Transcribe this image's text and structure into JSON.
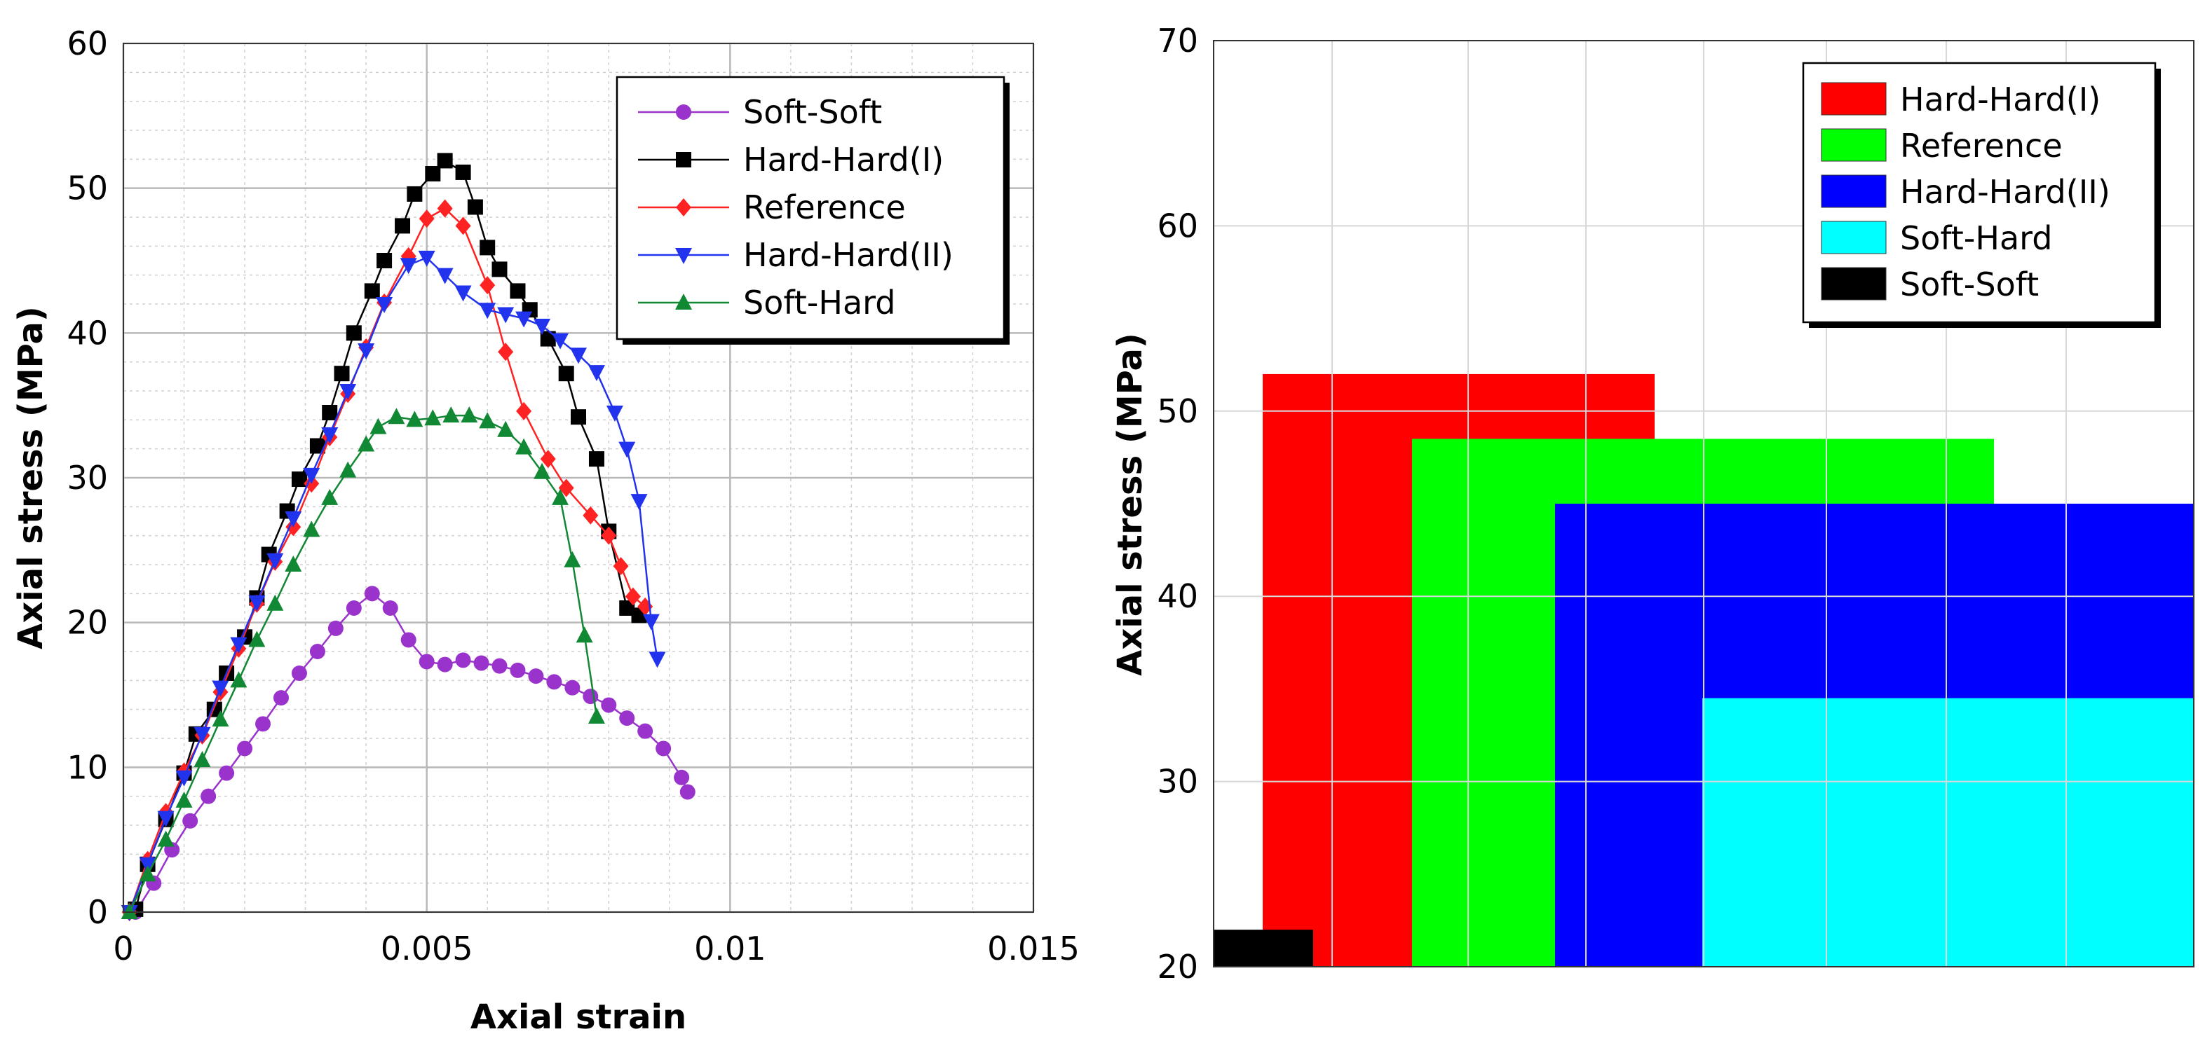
{
  "chart_data": [
    {
      "type": "line",
      "title": "",
      "xlabel": "Axial strain",
      "ylabel": "Axial stress (MPa)",
      "xlim": [
        0,
        0.015
      ],
      "ylim": [
        0,
        60
      ],
      "xticks": [
        0,
        0.005,
        0.01,
        0.015
      ],
      "xtick_labels": [
        "0",
        "0.005",
        "0.01",
        "0.015"
      ],
      "yticks": [
        0,
        10,
        20,
        30,
        40,
        50,
        60
      ],
      "ytick_labels": [
        "0",
        "10",
        "20",
        "30",
        "40",
        "50",
        "60"
      ],
      "grid": true,
      "legend": "top-right",
      "series": [
        {
          "name": "Soft-Soft",
          "color": "#9933cc",
          "marker": "circle",
          "points": [
            [
              0.0002,
              0
            ],
            [
              0.0005,
              2
            ],
            [
              0.0008,
              4.3
            ],
            [
              0.0011,
              6.3
            ],
            [
              0.0014,
              8
            ],
            [
              0.0017,
              9.6
            ],
            [
              0.002,
              11.3
            ],
            [
              0.0023,
              13
            ],
            [
              0.0026,
              14.8
            ],
            [
              0.0029,
              16.5
            ],
            [
              0.0032,
              18
            ],
            [
              0.0035,
              19.6
            ],
            [
              0.0038,
              21
            ],
            [
              0.0041,
              22
            ],
            [
              0.0044,
              21
            ],
            [
              0.0047,
              18.8
            ],
            [
              0.005,
              17.3
            ],
            [
              0.0053,
              17.1
            ],
            [
              0.0056,
              17.4
            ],
            [
              0.0059,
              17.2
            ],
            [
              0.0062,
              17
            ],
            [
              0.0065,
              16.7
            ],
            [
              0.0068,
              16.3
            ],
            [
              0.0071,
              15.9
            ],
            [
              0.0074,
              15.5
            ],
            [
              0.0077,
              14.9
            ],
            [
              0.008,
              14.3
            ],
            [
              0.0083,
              13.4
            ],
            [
              0.0086,
              12.5
            ],
            [
              0.0089,
              11.3
            ],
            [
              0.0092,
              9.3
            ],
            [
              0.0093,
              8.3
            ]
          ]
        },
        {
          "name": "Hard-Hard(I)",
          "color": "#000000",
          "marker": "square",
          "points": [
            [
              0.0002,
              0.2
            ],
            [
              0.0004,
              3.3
            ],
            [
              0.0007,
              6.4
            ],
            [
              0.001,
              9.6
            ],
            [
              0.0012,
              12.3
            ],
            [
              0.0015,
              14
            ],
            [
              0.0017,
              16.5
            ],
            [
              0.002,
              19
            ],
            [
              0.0022,
              21.7
            ],
            [
              0.0024,
              24.7
            ],
            [
              0.0027,
              27.7
            ],
            [
              0.0029,
              29.9
            ],
            [
              0.0032,
              32.2
            ],
            [
              0.0034,
              34.5
            ],
            [
              0.0036,
              37.2
            ],
            [
              0.0038,
              40
            ],
            [
              0.0041,
              42.9
            ],
            [
              0.0043,
              45
            ],
            [
              0.0046,
              47.4
            ],
            [
              0.0048,
              49.6
            ],
            [
              0.0051,
              51
            ],
            [
              0.0053,
              51.9
            ],
            [
              0.0056,
              51.1
            ],
            [
              0.0058,
              48.7
            ],
            [
              0.006,
              45.9
            ],
            [
              0.0062,
              44.4
            ],
            [
              0.0065,
              42.9
            ],
            [
              0.0067,
              41.6
            ],
            [
              0.007,
              39.6
            ],
            [
              0.0073,
              37.2
            ],
            [
              0.0075,
              34.2
            ],
            [
              0.0078,
              31.3
            ],
            [
              0.008,
              26.3
            ],
            [
              0.0083,
              21
            ],
            [
              0.0085,
              20.5
            ]
          ]
        },
        {
          "name": "Reference",
          "color": "#ff2222",
          "marker": "diamond",
          "points": [
            [
              0.0001,
              0
            ],
            [
              0.0004,
              3.6
            ],
            [
              0.0007,
              6.9
            ],
            [
              0.001,
              9.7
            ],
            [
              0.0013,
              12.2
            ],
            [
              0.0016,
              15.2
            ],
            [
              0.0019,
              18.2
            ],
            [
              0.0022,
              21.3
            ],
            [
              0.0025,
              24.2
            ],
            [
              0.0028,
              26.6
            ],
            [
              0.0031,
              29.6
            ],
            [
              0.0034,
              32.8
            ],
            [
              0.0037,
              35.8
            ],
            [
              0.004,
              39
            ],
            [
              0.0043,
              42.1
            ],
            [
              0.0047,
              45.3
            ],
            [
              0.005,
              47.9
            ],
            [
              0.0053,
              48.6
            ],
            [
              0.0056,
              47.4
            ],
            [
              0.006,
              43.3
            ],
            [
              0.0063,
              38.7
            ],
            [
              0.0066,
              34.6
            ],
            [
              0.007,
              31.3
            ],
            [
              0.0073,
              29.3
            ],
            [
              0.0077,
              27.4
            ],
            [
              0.008,
              26
            ],
            [
              0.0082,
              23.9
            ],
            [
              0.0084,
              21.8
            ],
            [
              0.0086,
              21.1
            ]
          ]
        },
        {
          "name": "Hard-Hard(II)",
          "color": "#2233ee",
          "marker": "triangle-down",
          "points": [
            [
              0.0001,
              0
            ],
            [
              0.0004,
              3.3
            ],
            [
              0.0007,
              6.5
            ],
            [
              0.001,
              9.3
            ],
            [
              0.0013,
              12.3
            ],
            [
              0.0016,
              15.5
            ],
            [
              0.0019,
              18.5
            ],
            [
              0.0022,
              21.4
            ],
            [
              0.0025,
              24.3
            ],
            [
              0.0028,
              27.2
            ],
            [
              0.0031,
              30.2
            ],
            [
              0.0034,
              33
            ],
            [
              0.0037,
              36
            ],
            [
              0.004,
              38.8
            ],
            [
              0.0043,
              42
            ],
            [
              0.0047,
              44.7
            ],
            [
              0.005,
              45.2
            ],
            [
              0.0053,
              44
            ],
            [
              0.0056,
              42.8
            ],
            [
              0.006,
              41.6
            ],
            [
              0.0063,
              41.3
            ],
            [
              0.0066,
              41
            ],
            [
              0.0069,
              40.5
            ],
            [
              0.0072,
              39.5
            ],
            [
              0.0075,
              38.5
            ],
            [
              0.0078,
              37.3
            ],
            [
              0.0081,
              34.5
            ],
            [
              0.0083,
              32
            ],
            [
              0.0085,
              28.4
            ],
            [
              0.0087,
              20.1
            ],
            [
              0.0088,
              17.5
            ]
          ]
        },
        {
          "name": "Soft-Hard",
          "color": "#118833",
          "marker": "triangle-up",
          "points": [
            [
              0.0001,
              0
            ],
            [
              0.0004,
              2.6
            ],
            [
              0.0007,
              5
            ],
            [
              0.001,
              7.7
            ],
            [
              0.0013,
              10.5
            ],
            [
              0.0016,
              13.3
            ],
            [
              0.0019,
              16
            ],
            [
              0.0022,
              18.8
            ],
            [
              0.0025,
              21.3
            ],
            [
              0.0028,
              24
            ],
            [
              0.0031,
              26.4
            ],
            [
              0.0034,
              28.6
            ],
            [
              0.0037,
              30.5
            ],
            [
              0.004,
              32.3
            ],
            [
              0.0042,
              33.5
            ],
            [
              0.0045,
              34.2
            ],
            [
              0.0048,
              34
            ],
            [
              0.0051,
              34.1
            ],
            [
              0.0054,
              34.3
            ],
            [
              0.0057,
              34.3
            ],
            [
              0.006,
              33.9
            ],
            [
              0.0063,
              33.3
            ],
            [
              0.0066,
              32.1
            ],
            [
              0.0069,
              30.4
            ],
            [
              0.0072,
              28.6
            ],
            [
              0.0074,
              24.3
            ],
            [
              0.0076,
              19.1
            ],
            [
              0.0078,
              13.5
            ]
          ]
        }
      ]
    },
    {
      "type": "bar",
      "title": "",
      "xlabel": "",
      "ylabel": "Axial stress (MPa)",
      "ylim": [
        20,
        70
      ],
      "yticks": [
        20,
        30,
        40,
        50,
        60,
        70
      ],
      "ytick_labels": [
        "20",
        "30",
        "40",
        "50",
        "60",
        "70"
      ],
      "grid": true,
      "legend": "top-right",
      "categories": [
        "Hard-Hard(I)",
        "Reference",
        "Hard-Hard(II)",
        "Soft-Hard",
        "Soft-Soft"
      ],
      "values": [
        52,
        48.5,
        45,
        34.5,
        22
      ],
      "colors": [
        "#ff0000",
        "#00ff00",
        "#0000ff",
        "#00ffff",
        "#000000"
      ]
    }
  ]
}
